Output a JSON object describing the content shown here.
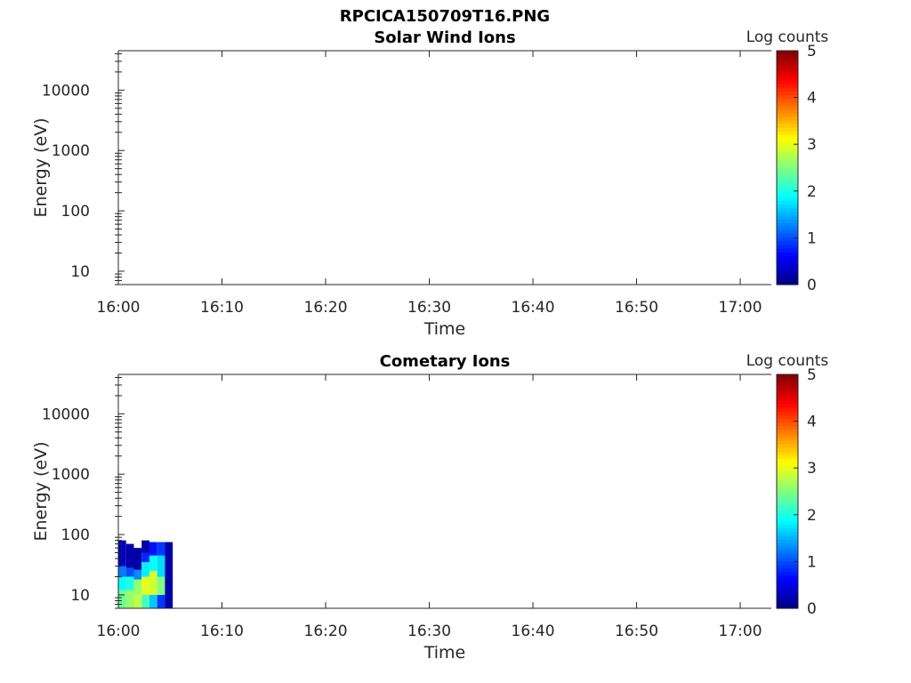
{
  "figure_title": "RPCICA150709T16.PNG",
  "chart_data": [
    {
      "type": "heatmap",
      "title": "Solar Wind Ions",
      "xlabel": "Time",
      "ylabel": "Energy (eV)",
      "y_scale": "log",
      "ylim": [
        6,
        45000
      ],
      "xlim": [
        "16:00",
        "17:03"
      ],
      "x_ticks": [
        "16:00",
        "16:10",
        "16:20",
        "16:30",
        "16:40",
        "16:50",
        "17:00"
      ],
      "y_ticks": [
        "10",
        "100",
        "1000",
        "10000"
      ],
      "colorbar": {
        "label": "Log counts",
        "range": [
          0,
          5
        ],
        "ticks": [
          "0",
          "1",
          "2",
          "3",
          "4",
          "5"
        ],
        "colormap": "jet"
      },
      "cells": []
    },
    {
      "type": "heatmap",
      "title": "Cometary Ions",
      "xlabel": "Time",
      "ylabel": "Energy (eV)",
      "y_scale": "log",
      "ylim": [
        6,
        45000
      ],
      "xlim": [
        "16:00",
        "17:03"
      ],
      "x_ticks": [
        "16:00",
        "16:10",
        "16:20",
        "16:30",
        "16:40",
        "16:50",
        "17:00"
      ],
      "y_ticks": [
        "10",
        "100",
        "1000",
        "10000"
      ],
      "colorbar": {
        "label": "Log counts",
        "range": [
          0,
          5
        ],
        "ticks": [
          "0",
          "1",
          "2",
          "3",
          "4",
          "5"
        ],
        "colormap": "jet"
      },
      "cells": [
        {
          "t": 0.0,
          "e_lo": 6,
          "e_hi": 12,
          "v": 2.4
        },
        {
          "t": 0.0,
          "e_lo": 12,
          "e_hi": 20,
          "v": 1.9
        },
        {
          "t": 0.0,
          "e_lo": 20,
          "e_hi": 30,
          "v": 1.2
        },
        {
          "t": 0.0,
          "e_lo": 30,
          "e_hi": 80,
          "v": 0.3
        },
        {
          "t": 0.75,
          "e_lo": 6,
          "e_hi": 12,
          "v": 2.6
        },
        {
          "t": 0.75,
          "e_lo": 12,
          "e_hi": 20,
          "v": 2.0
        },
        {
          "t": 0.75,
          "e_lo": 20,
          "e_hi": 28,
          "v": 1.0
        },
        {
          "t": 0.75,
          "e_lo": 28,
          "e_hi": 70,
          "v": 0.2
        },
        {
          "t": 1.5,
          "e_lo": 6,
          "e_hi": 10,
          "v": 2.8
        },
        {
          "t": 1.5,
          "e_lo": 10,
          "e_hi": 18,
          "v": 2.6
        },
        {
          "t": 1.5,
          "e_lo": 18,
          "e_hi": 26,
          "v": 1.3
        },
        {
          "t": 1.5,
          "e_lo": 26,
          "e_hi": 60,
          "v": 0.2
        },
        {
          "t": 2.25,
          "e_lo": 6,
          "e_hi": 10,
          "v": 2.2
        },
        {
          "t": 2.25,
          "e_lo": 10,
          "e_hi": 20,
          "v": 3.0
        },
        {
          "t": 2.25,
          "e_lo": 20,
          "e_hi": 35,
          "v": 1.8
        },
        {
          "t": 2.25,
          "e_lo": 35,
          "e_hi": 50,
          "v": 0.8
        },
        {
          "t": 2.25,
          "e_lo": 50,
          "e_hi": 80,
          "v": 0.2
        },
        {
          "t": 3.0,
          "e_lo": 6,
          "e_hi": 10,
          "v": 1.6
        },
        {
          "t": 3.0,
          "e_lo": 10,
          "e_hi": 25,
          "v": 2.9
        },
        {
          "t": 3.0,
          "e_lo": 25,
          "e_hi": 45,
          "v": 1.9
        },
        {
          "t": 3.0,
          "e_lo": 45,
          "e_hi": 75,
          "v": 0.7
        },
        {
          "t": 3.75,
          "e_lo": 6,
          "e_hi": 10,
          "v": 0.9
        },
        {
          "t": 3.75,
          "e_lo": 10,
          "e_hi": 20,
          "v": 2.5
        },
        {
          "t": 3.75,
          "e_lo": 20,
          "e_hi": 45,
          "v": 1.7
        },
        {
          "t": 3.75,
          "e_lo": 45,
          "e_hi": 75,
          "v": 0.9
        },
        {
          "t": 4.5,
          "e_lo": 6,
          "e_hi": 75,
          "v": 0.2
        }
      ],
      "cell_width_min": 0.75
    }
  ]
}
